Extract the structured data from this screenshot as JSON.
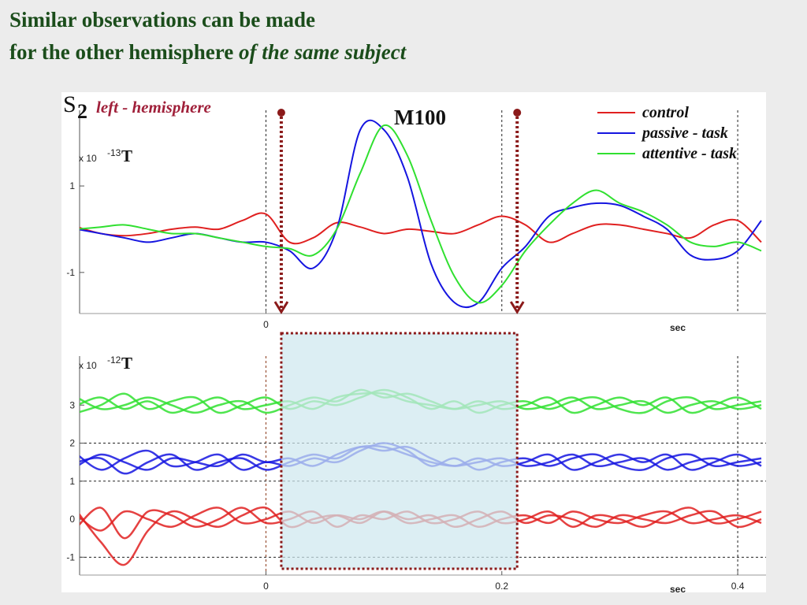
{
  "title": {
    "line1": "Similar observations can be made",
    "line2": "for  the other hemisphere",
    "line2_italic": "of the same subject"
  },
  "chart_data": [
    {
      "type": "line",
      "subject_letter": "S",
      "subject_number": "2",
      "subtitle": "left - hemisphere",
      "annotation": "M100",
      "unit_label": {
        "base": "x 10",
        "exponent": "-13",
        "unit": "T"
      },
      "x_label": "sec",
      "xlim": [
        -0.158,
        0.424
      ],
      "ylim": [
        -1.95,
        2.75
      ],
      "xticks": [
        0
      ],
      "yticks": [
        1,
        -1
      ],
      "vlines": [
        0,
        0.2,
        0.4
      ],
      "highlight_window": [
        0.013,
        0.213
      ],
      "legend": "upper right",
      "x": [
        -0.16,
        -0.14,
        -0.12,
        -0.1,
        -0.08,
        -0.06,
        -0.04,
        -0.02,
        0,
        0.02,
        0.04,
        0.06,
        0.08,
        0.1,
        0.12,
        0.14,
        0.16,
        0.18,
        0.2,
        0.22,
        0.24,
        0.26,
        0.28,
        0.3,
        0.32,
        0.34,
        0.36,
        0.38,
        0.4,
        0.42
      ],
      "series": [
        {
          "name": "control",
          "color": "#e02020",
          "values": [
            0.05,
            -0.1,
            -0.15,
            -0.1,
            0.0,
            0.05,
            0.0,
            0.2,
            0.35,
            -0.3,
            -0.2,
            0.15,
            0.05,
            -0.1,
            0.0,
            -0.05,
            -0.1,
            0.1,
            0.3,
            0.1,
            -0.3,
            -0.1,
            0.1,
            0.1,
            0.0,
            -0.1,
            -0.2,
            0.1,
            0.2,
            -0.3
          ]
        },
        {
          "name": "passive - task",
          "color": "#1515e0",
          "values": [
            0.0,
            -0.1,
            -0.2,
            -0.3,
            -0.2,
            -0.1,
            -0.2,
            -0.3,
            -0.3,
            -0.5,
            -0.9,
            0.0,
            2.3,
            2.3,
            1.2,
            -0.8,
            -1.7,
            -1.7,
            -0.9,
            -0.4,
            0.3,
            0.5,
            0.6,
            0.55,
            0.3,
            0.0,
            -0.6,
            -0.7,
            -0.5,
            0.2
          ]
        },
        {
          "name": "attentive - task",
          "color": "#30e030",
          "values": [
            0.0,
            0.05,
            0.1,
            0.0,
            -0.1,
            -0.1,
            -0.2,
            -0.3,
            -0.4,
            -0.45,
            -0.6,
            0.0,
            1.3,
            2.4,
            1.7,
            0.2,
            -1.1,
            -1.7,
            -1.3,
            -0.5,
            0.1,
            0.6,
            0.9,
            0.6,
            0.4,
            0.1,
            -0.3,
            -0.4,
            -0.3,
            -0.5
          ]
        }
      ]
    },
    {
      "type": "line",
      "unit_label": {
        "base": "x 10",
        "exponent": "-12",
        "unit": "T"
      },
      "x_label": "sec",
      "xlim": [
        -0.158,
        0.424
      ],
      "ylim": [
        -1.47,
        4.29
      ],
      "xticks": [
        0,
        0.2,
        0.4
      ],
      "yticks": [
        3,
        2,
        1,
        0,
        -1
      ],
      "vlines": [
        0,
        0.4
      ],
      "hlines": [
        2,
        1,
        -1
      ],
      "highlight_window": [
        0.013,
        0.213
      ],
      "x": [
        -0.16,
        -0.14,
        -0.12,
        -0.1,
        -0.08,
        -0.06,
        -0.04,
        -0.02,
        0,
        0.02,
        0.04,
        0.06,
        0.08,
        0.1,
        0.12,
        0.14,
        0.16,
        0.18,
        0.2,
        0.22,
        0.24,
        0.26,
        0.28,
        0.3,
        0.32,
        0.34,
        0.36,
        0.38,
        0.4,
        0.42
      ],
      "series": [
        {
          "color": "#30e030",
          "values": [
            3.0,
            3.2,
            2.9,
            3.1,
            2.8,
            3.0,
            3.2,
            2.9,
            3.0,
            3.1,
            2.9,
            3.2,
            3.3,
            3.3,
            3.1,
            3.0,
            2.9,
            3.0,
            3.1,
            2.9,
            3.0,
            3.2,
            2.9,
            3.0,
            3.1,
            2.8,
            3.0,
            3.1,
            2.9,
            3.0
          ]
        },
        {
          "color": "#30e030",
          "values": [
            2.8,
            3.0,
            3.3,
            2.9,
            3.1,
            3.2,
            2.8,
            3.0,
            3.2,
            2.9,
            3.1,
            3.0,
            3.2,
            3.4,
            3.2,
            2.9,
            3.1,
            2.8,
            3.0,
            3.1,
            2.9,
            3.1,
            3.2,
            2.9,
            2.8,
            3.1,
            3.2,
            2.9,
            3.0,
            3.1
          ]
        },
        {
          "color": "#30e030",
          "values": [
            3.2,
            2.9,
            3.0,
            3.2,
            3.0,
            2.8,
            3.0,
            3.1,
            2.8,
            3.0,
            3.2,
            3.1,
            3.4,
            3.2,
            3.3,
            3.1,
            2.9,
            3.1,
            2.9,
            3.0,
            3.2,
            2.8,
            3.0,
            3.2,
            3.0,
            3.2,
            2.8,
            3.0,
            3.2,
            2.9
          ]
        },
        {
          "color": "#1515e0",
          "values": [
            1.4,
            1.7,
            1.5,
            1.3,
            1.6,
            1.5,
            1.4,
            1.7,
            1.5,
            1.6,
            1.4,
            1.7,
            1.9,
            1.9,
            1.7,
            1.5,
            1.4,
            1.5,
            1.6,
            1.4,
            1.5,
            1.7,
            1.4,
            1.5,
            1.6,
            1.3,
            1.5,
            1.6,
            1.4,
            1.5
          ]
        },
        {
          "color": "#1515e0",
          "values": [
            1.7,
            1.3,
            1.6,
            1.8,
            1.4,
            1.5,
            1.7,
            1.3,
            1.5,
            1.4,
            1.6,
            1.5,
            1.8,
            2.0,
            1.8,
            1.4,
            1.6,
            1.3,
            1.5,
            1.6,
            1.4,
            1.6,
            1.7,
            1.4,
            1.3,
            1.6,
            1.7,
            1.4,
            1.5,
            1.6
          ]
        },
        {
          "color": "#1515e0",
          "values": [
            1.5,
            1.6,
            1.2,
            1.5,
            1.7,
            1.3,
            1.5,
            1.6,
            1.3,
            1.5,
            1.7,
            1.6,
            1.9,
            1.8,
            1.9,
            1.6,
            1.4,
            1.6,
            1.4,
            1.5,
            1.7,
            1.3,
            1.5,
            1.7,
            1.5,
            1.7,
            1.3,
            1.5,
            1.7,
            1.4
          ]
        },
        {
          "color": "#e02020",
          "values": [
            0.1,
            -0.3,
            0.2,
            0.0,
            -0.2,
            0.1,
            0.3,
            -0.1,
            0.0,
            0.2,
            -0.1,
            0.1,
            0.0,
            0.2,
            -0.1,
            0.0,
            0.1,
            -0.2,
            0.0,
            0.1,
            -0.1,
            0.2,
            0.0,
            -0.1,
            0.1,
            0.2,
            -0.1,
            0.0,
            0.1,
            -0.1
          ]
        },
        {
          "color": "#e02020",
          "values": [
            -0.2,
            0.3,
            -0.5,
            0.2,
            0.1,
            -0.2,
            0.0,
            0.3,
            -0.1,
            0.0,
            0.2,
            -0.2,
            0.1,
            0.0,
            0.2,
            -0.1,
            0.0,
            0.2,
            -0.1,
            0.0,
            0.2,
            -0.2,
            0.1,
            0.0,
            -0.2,
            0.1,
            0.3,
            -0.1,
            0.0,
            0.2
          ]
        },
        {
          "color": "#e02020",
          "values": [
            0.2,
            -0.6,
            -1.2,
            -0.3,
            0.2,
            0.0,
            -0.2,
            0.1,
            0.3,
            -0.2,
            0.0,
            0.1,
            -0.1,
            0.2,
            0.0,
            0.1,
            -0.2,
            0.0,
            0.2,
            -0.1,
            0.1,
            0.0,
            -0.2,
            0.1,
            0.0,
            -0.1,
            0.1,
            0.2,
            -0.2,
            0.0
          ]
        }
      ]
    }
  ]
}
